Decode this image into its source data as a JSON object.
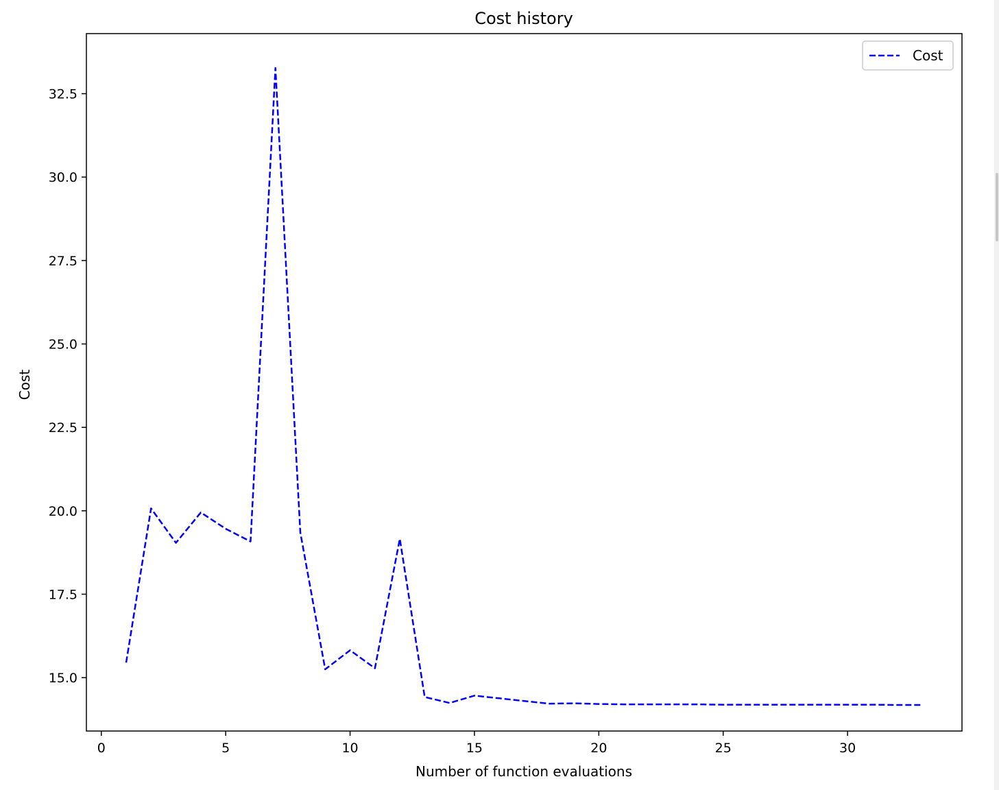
{
  "chart_data": {
    "type": "line",
    "title": "Cost history",
    "xlabel": "Number of function evaluations",
    "ylabel": "Cost",
    "xlim": [
      -0.6,
      34.6
    ],
    "ylim": [
      13.4,
      34.3
    ],
    "xticks": [
      0,
      5,
      10,
      15,
      20,
      25,
      30
    ],
    "xtick_labels": [
      "0",
      "5",
      "10",
      "15",
      "20",
      "25",
      "30"
    ],
    "yticks": [
      15.0,
      17.5,
      20.0,
      22.5,
      25.0,
      27.5,
      30.0,
      32.5
    ],
    "ytick_labels": [
      "15.0",
      "17.5",
      "20.0",
      "22.5",
      "25.0",
      "27.5",
      "30.0",
      "32.5"
    ],
    "grid": false,
    "legend_position": "top-right",
    "series": [
      {
        "name": "Cost",
        "color": "#0000ff",
        "line_style": "dashed",
        "x": [
          1,
          2,
          3,
          4,
          5,
          6,
          7,
          8,
          9,
          10,
          11,
          12,
          13,
          14,
          15,
          16,
          17,
          18,
          19,
          20,
          21,
          22,
          23,
          24,
          25,
          26,
          27,
          28,
          29,
          30,
          31,
          32,
          33
        ],
        "y": [
          15.45,
          20.07,
          19.04,
          19.95,
          19.46,
          19.08,
          33.27,
          19.35,
          15.25,
          15.82,
          15.28,
          19.16,
          14.42,
          14.24,
          14.46,
          14.38,
          14.3,
          14.22,
          14.23,
          14.21,
          14.2,
          14.2,
          14.2,
          14.2,
          14.19,
          14.19,
          14.19,
          14.19,
          14.19,
          14.19,
          14.19,
          14.18,
          14.18
        ]
      }
    ]
  }
}
